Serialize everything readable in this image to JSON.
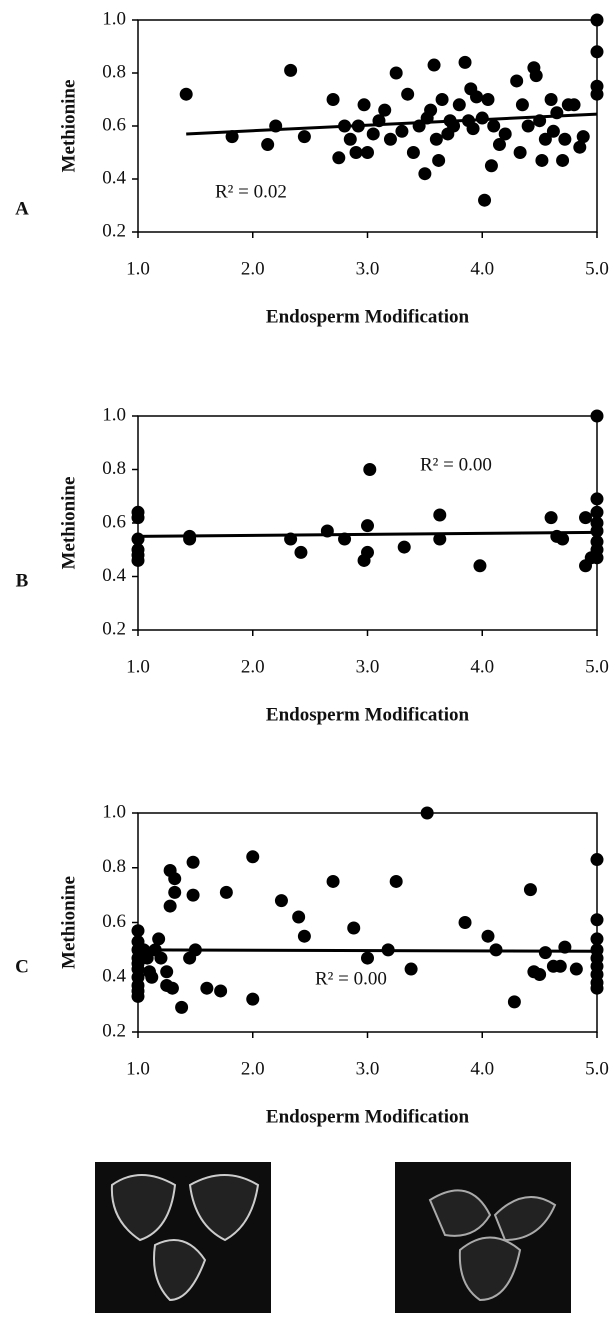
{
  "chart_data": [
    {
      "type": "scatter",
      "panel": "A",
      "xlabel": "Endosperm Modification",
      "ylabel": "Methionine",
      "annotation": "R² = 0.02",
      "xlim": [
        1,
        5
      ],
      "ylim": [
        0.2,
        1.0
      ],
      "xticks": [
        {
          "value": 1,
          "label": "1.0"
        },
        {
          "value": 2,
          "label": "2.0"
        },
        {
          "value": 3,
          "label": "3.0"
        },
        {
          "value": 4,
          "label": "4.0"
        },
        {
          "value": 5,
          "label": "5.0"
        }
      ],
      "yticks": [
        0.2,
        0.4,
        0.6,
        0.8,
        {
          "value": 1,
          "label": "1.0"
        }
      ],
      "color": "#000000",
      "x": [
        1.42,
        1.82,
        2.13,
        2.2,
        2.33,
        2.45,
        2.7,
        2.75,
        2.8,
        2.85,
        2.9,
        2.92,
        2.97,
        3.0,
        3.05,
        3.1,
        3.15,
        3.2,
        3.25,
        3.3,
        3.35,
        3.4,
        3.45,
        3.5,
        3.52,
        3.55,
        3.58,
        3.6,
        3.62,
        3.65,
        3.7,
        3.72,
        3.75,
        3.8,
        3.85,
        3.88,
        3.9,
        3.92,
        3.95,
        4.0,
        4.02,
        4.05,
        4.08,
        4.1,
        4.15,
        4.2,
        4.3,
        4.33,
        4.35,
        4.4,
        4.45,
        4.47,
        4.5,
        4.52,
        4.55,
        4.6,
        4.62,
        4.65,
        4.7,
        4.72,
        4.75,
        4.8,
        4.85,
        4.88,
        5.0,
        5.0,
        5.0,
        5.0
      ],
      "y": [
        0.72,
        0.56,
        0.53,
        0.6,
        0.81,
        0.56,
        0.7,
        0.48,
        0.6,
        0.55,
        0.5,
        0.6,
        0.68,
        0.5,
        0.57,
        0.62,
        0.66,
        0.55,
        0.8,
        0.58,
        0.72,
        0.5,
        0.6,
        0.42,
        0.63,
        0.66,
        0.83,
        0.55,
        0.47,
        0.7,
        0.57,
        0.62,
        0.6,
        0.68,
        0.84,
        0.62,
        0.74,
        0.59,
        0.71,
        0.63,
        0.32,
        0.7,
        0.45,
        0.6,
        0.53,
        0.57,
        0.77,
        0.5,
        0.68,
        0.6,
        0.82,
        0.79,
        0.62,
        0.47,
        0.55,
        0.7,
        0.58,
        0.65,
        0.47,
        0.55,
        0.68,
        0.68,
        0.52,
        0.56,
        1.0,
        0.88,
        0.75,
        0.72
      ],
      "trend_x": [
        1.42,
        5.0
      ],
      "trend_y": [
        0.57,
        0.645
      ]
    },
    {
      "type": "scatter",
      "panel": "B",
      "xlabel": "Endosperm Modification",
      "ylabel": "Methionine",
      "annotation": "R² = 0.00",
      "xlim": [
        1,
        5
      ],
      "ylim": [
        0.2,
        1.0
      ],
      "xticks": [
        {
          "value": 1,
          "label": "1.0"
        },
        {
          "value": 2,
          "label": "2.0"
        },
        {
          "value": 3,
          "label": "3.0"
        },
        {
          "value": 4,
          "label": "4.0"
        },
        {
          "value": 5,
          "label": "5.0"
        }
      ],
      "yticks": [
        0.2,
        0.4,
        0.6,
        0.8,
        {
          "value": 1,
          "label": "1.0"
        }
      ],
      "color": "#000000",
      "x": [
        1.0,
        1.0,
        1.0,
        1.0,
        1.0,
        1.0,
        1.45,
        1.45,
        2.33,
        2.42,
        2.65,
        2.8,
        2.97,
        3.0,
        3.0,
        3.02,
        3.32,
        3.63,
        3.63,
        3.98,
        4.6,
        4.65,
        4.7,
        4.9,
        4.9,
        4.95,
        5.0,
        5.0,
        5.0,
        5.0,
        5.0,
        5.0,
        5.0,
        5.0
      ],
      "y": [
        0.64,
        0.62,
        0.54,
        0.5,
        0.48,
        0.46,
        0.55,
        0.54,
        0.54,
        0.49,
        0.57,
        0.54,
        0.46,
        0.49,
        0.59,
        0.8,
        0.51,
        0.63,
        0.54,
        0.44,
        0.62,
        0.55,
        0.54,
        0.62,
        0.44,
        0.47,
        1.0,
        0.69,
        0.64,
        0.6,
        0.57,
        0.53,
        0.5,
        0.47
      ],
      "trend_x": [
        1.0,
        5.0
      ],
      "trend_y": [
        0.55,
        0.565
      ]
    },
    {
      "type": "scatter",
      "panel": "C",
      "xlabel": "Endosperm Modification",
      "ylabel": "Methionine",
      "annotation": "R² = 0.00",
      "xlim": [
        1,
        5
      ],
      "ylim": [
        0.2,
        1.0
      ],
      "xticks": [
        {
          "value": 1,
          "label": "1.0"
        },
        {
          "value": 2,
          "label": "2.0"
        },
        {
          "value": 3,
          "label": "3.0"
        },
        {
          "value": 4,
          "label": "4.0"
        },
        {
          "value": 5,
          "label": "5.0"
        }
      ],
      "yticks": [
        0.2,
        0.4,
        0.6,
        0.8,
        {
          "value": 1,
          "label": "1.0"
        }
      ],
      "color": "#000000",
      "x": [
        1.0,
        1.0,
        1.0,
        1.0,
        1.0,
        1.0,
        1.0,
        1.0,
        1.0,
        1.0,
        1.05,
        1.08,
        1.1,
        1.12,
        1.15,
        1.18,
        1.2,
        1.25,
        1.25,
        1.28,
        1.28,
        1.3,
        1.32,
        1.32,
        1.38,
        1.45,
        1.48,
        1.48,
        1.5,
        1.6,
        1.72,
        1.77,
        2.0,
        2.0,
        2.25,
        2.4,
        2.45,
        2.7,
        2.88,
        3.0,
        3.18,
        3.25,
        3.38,
        3.52,
        3.85,
        4.05,
        4.12,
        4.28,
        4.42,
        4.45,
        4.5,
        4.55,
        4.62,
        4.68,
        4.72,
        4.82,
        5.0,
        5.0,
        5.0,
        5.0,
        5.0,
        5.0,
        5.0,
        5.0,
        5.0
      ],
      "y": [
        0.57,
        0.53,
        0.5,
        0.47,
        0.45,
        0.43,
        0.4,
        0.37,
        0.35,
        0.33,
        0.5,
        0.47,
        0.42,
        0.4,
        0.5,
        0.54,
        0.47,
        0.42,
        0.37,
        0.66,
        0.79,
        0.36,
        0.76,
        0.71,
        0.29,
        0.47,
        0.82,
        0.7,
        0.5,
        0.36,
        0.35,
        0.71,
        0.32,
        0.84,
        0.68,
        0.62,
        0.55,
        0.75,
        0.58,
        0.47,
        0.5,
        0.75,
        0.43,
        1.0,
        0.6,
        0.55,
        0.5,
        0.31,
        0.72,
        0.42,
        0.41,
        0.49,
        0.44,
        0.44,
        0.51,
        0.43,
        0.83,
        0.61,
        0.54,
        0.5,
        0.47,
        0.44,
        0.41,
        0.38,
        0.36
      ],
      "trend_x": [
        1.0,
        5.0
      ],
      "trend_y": [
        0.5,
        0.495
      ]
    }
  ]
}
